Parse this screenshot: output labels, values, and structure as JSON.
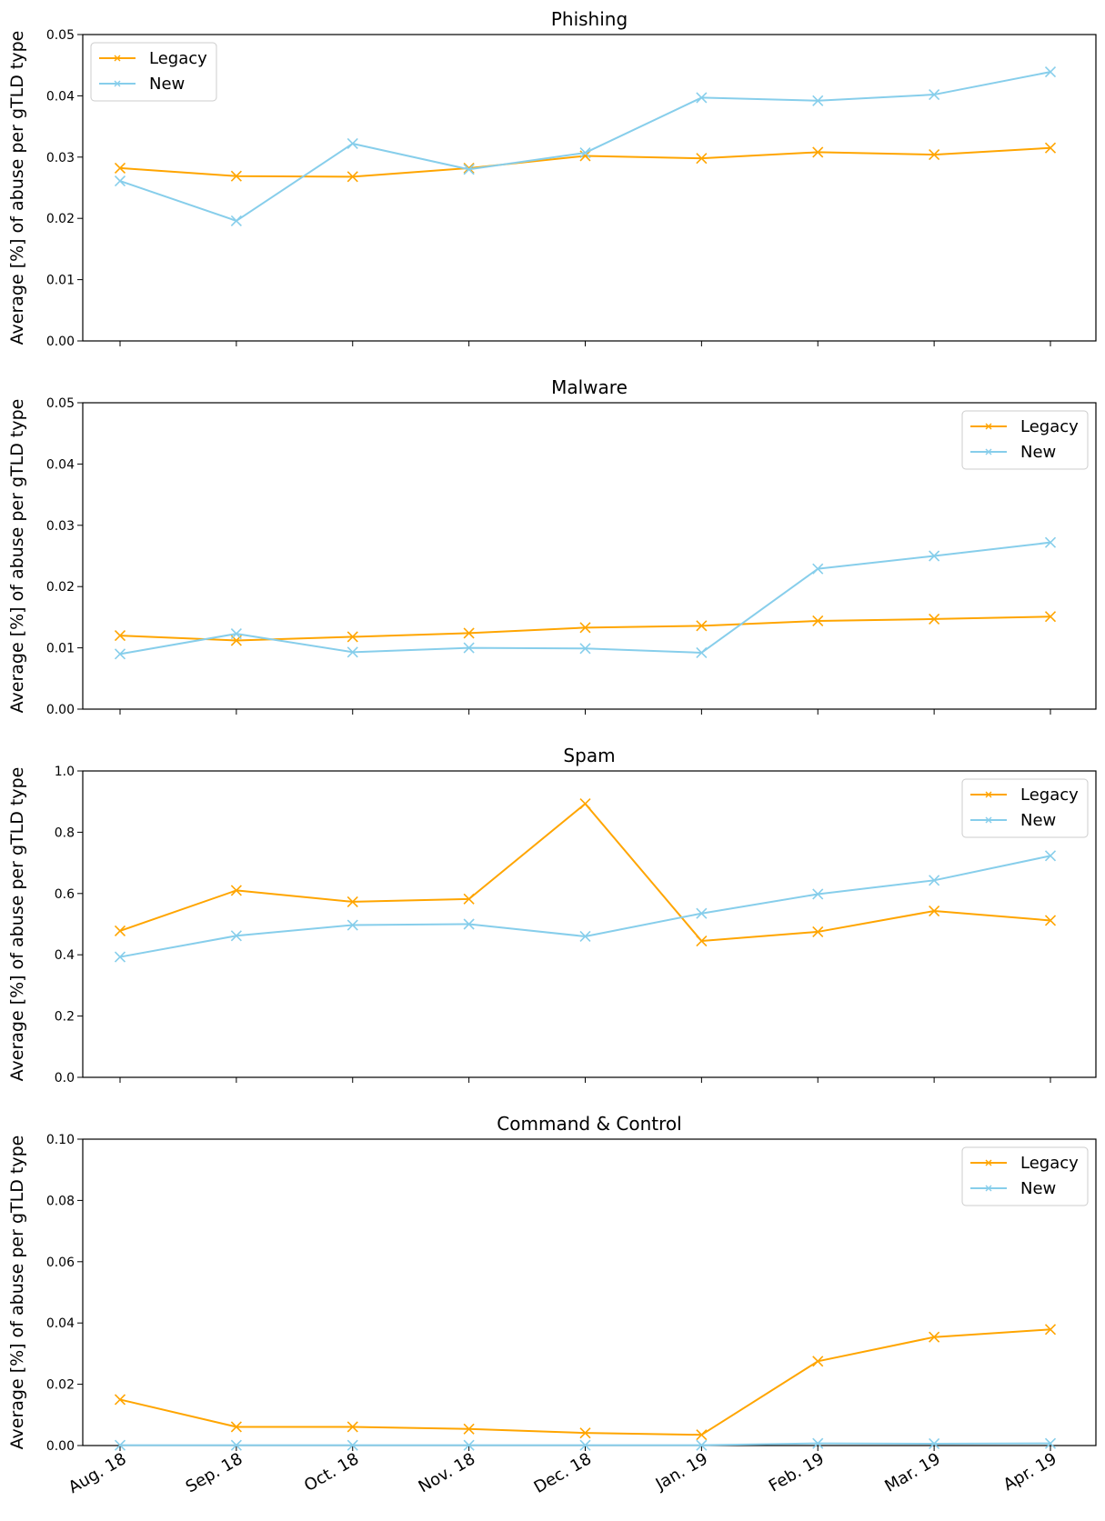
{
  "chart_data": [
    {
      "type": "line",
      "title": "Phishing",
      "ylabel": "Average [%] of abuse per gTLD type",
      "categories": [
        "Aug. 18",
        "Sep. 18",
        "Oct. 18",
        "Nov. 18",
        "Dec. 18",
        "Jan. 19",
        "Feb. 19",
        "Mar. 19",
        "Apr. 19"
      ],
      "ylim": [
        0,
        0.05
      ],
      "yticks": [
        "0.00",
        "0.01",
        "0.02",
        "0.03",
        "0.04",
        "0.05"
      ],
      "legend": "upper-left",
      "series": [
        {
          "name": "Legacy",
          "color": "#FFA500",
          "values": [
            0.0282,
            0.0269,
            0.0268,
            0.0282,
            0.0302,
            0.0298,
            0.0308,
            0.0304,
            0.0315
          ]
        },
        {
          "name": "New",
          "color": "#87CEEB",
          "values": [
            0.0261,
            0.0196,
            0.0322,
            0.028,
            0.0307,
            0.0397,
            0.0392,
            0.0402,
            0.0439
          ]
        }
      ]
    },
    {
      "type": "line",
      "title": "Malware",
      "ylabel": "Average [%] of abuse per gTLD type",
      "categories": [
        "Aug. 18",
        "Sep. 18",
        "Oct. 18",
        "Nov. 18",
        "Dec. 18",
        "Jan. 19",
        "Feb. 19",
        "Mar. 19",
        "Apr. 19"
      ],
      "ylim": [
        0,
        0.05
      ],
      "yticks": [
        "0.00",
        "0.01",
        "0.02",
        "0.03",
        "0.04",
        "0.05"
      ],
      "legend": "upper-right",
      "series": [
        {
          "name": "Legacy",
          "color": "#FFA500",
          "values": [
            0.012,
            0.0112,
            0.0118,
            0.0124,
            0.0133,
            0.0136,
            0.0144,
            0.0147,
            0.0151
          ]
        },
        {
          "name": "New",
          "color": "#87CEEB",
          "values": [
            0.009,
            0.0123,
            0.0093,
            0.01,
            0.0099,
            0.0092,
            0.0229,
            0.025,
            0.0272
          ]
        }
      ]
    },
    {
      "type": "line",
      "title": "Spam",
      "ylabel": "Average [%] of abuse per gTLD type",
      "categories": [
        "Aug. 18",
        "Sep. 18",
        "Oct. 18",
        "Nov. 18",
        "Dec. 18",
        "Jan. 19",
        "Feb. 19",
        "Mar. 19",
        "Apr. 19"
      ],
      "ylim": [
        0,
        1.0
      ],
      "yticks": [
        "0.0",
        "0.2",
        "0.4",
        "0.6",
        "0.8",
        "1.0"
      ],
      "legend": "upper-right",
      "series": [
        {
          "name": "Legacy",
          "color": "#FFA500",
          "values": [
            0.478,
            0.61,
            0.573,
            0.582,
            0.893,
            0.445,
            0.475,
            0.543,
            0.512
          ]
        },
        {
          "name": "New",
          "color": "#87CEEB",
          "values": [
            0.393,
            0.462,
            0.497,
            0.5,
            0.46,
            0.535,
            0.598,
            0.643,
            0.723
          ]
        }
      ]
    },
    {
      "type": "line",
      "title": "Command & Control",
      "ylabel": "Average [%] of abuse per gTLD type",
      "categories": [
        "Aug. 18",
        "Sep. 18",
        "Oct. 18",
        "Nov. 18",
        "Dec. 18",
        "Jan. 19",
        "Feb. 19",
        "Mar. 19",
        "Apr. 19"
      ],
      "ylim": [
        0,
        0.1
      ],
      "yticks": [
        "0.00",
        "0.02",
        "0.04",
        "0.06",
        "0.08",
        "0.10"
      ],
      "legend": "upper-right",
      "series": [
        {
          "name": "Legacy",
          "color": "#FFA500",
          "values": [
            0.015,
            0.0061,
            0.0061,
            0.0054,
            0.0041,
            0.0035,
            0.0275,
            0.0354,
            0.0379
          ]
        },
        {
          "name": "New",
          "color": "#87CEEB",
          "values": [
            0.0001,
            0.0001,
            0.0001,
            0.0001,
            0.0001,
            0.0001,
            0.0007,
            0.0006,
            0.0007
          ]
        }
      ]
    }
  ]
}
